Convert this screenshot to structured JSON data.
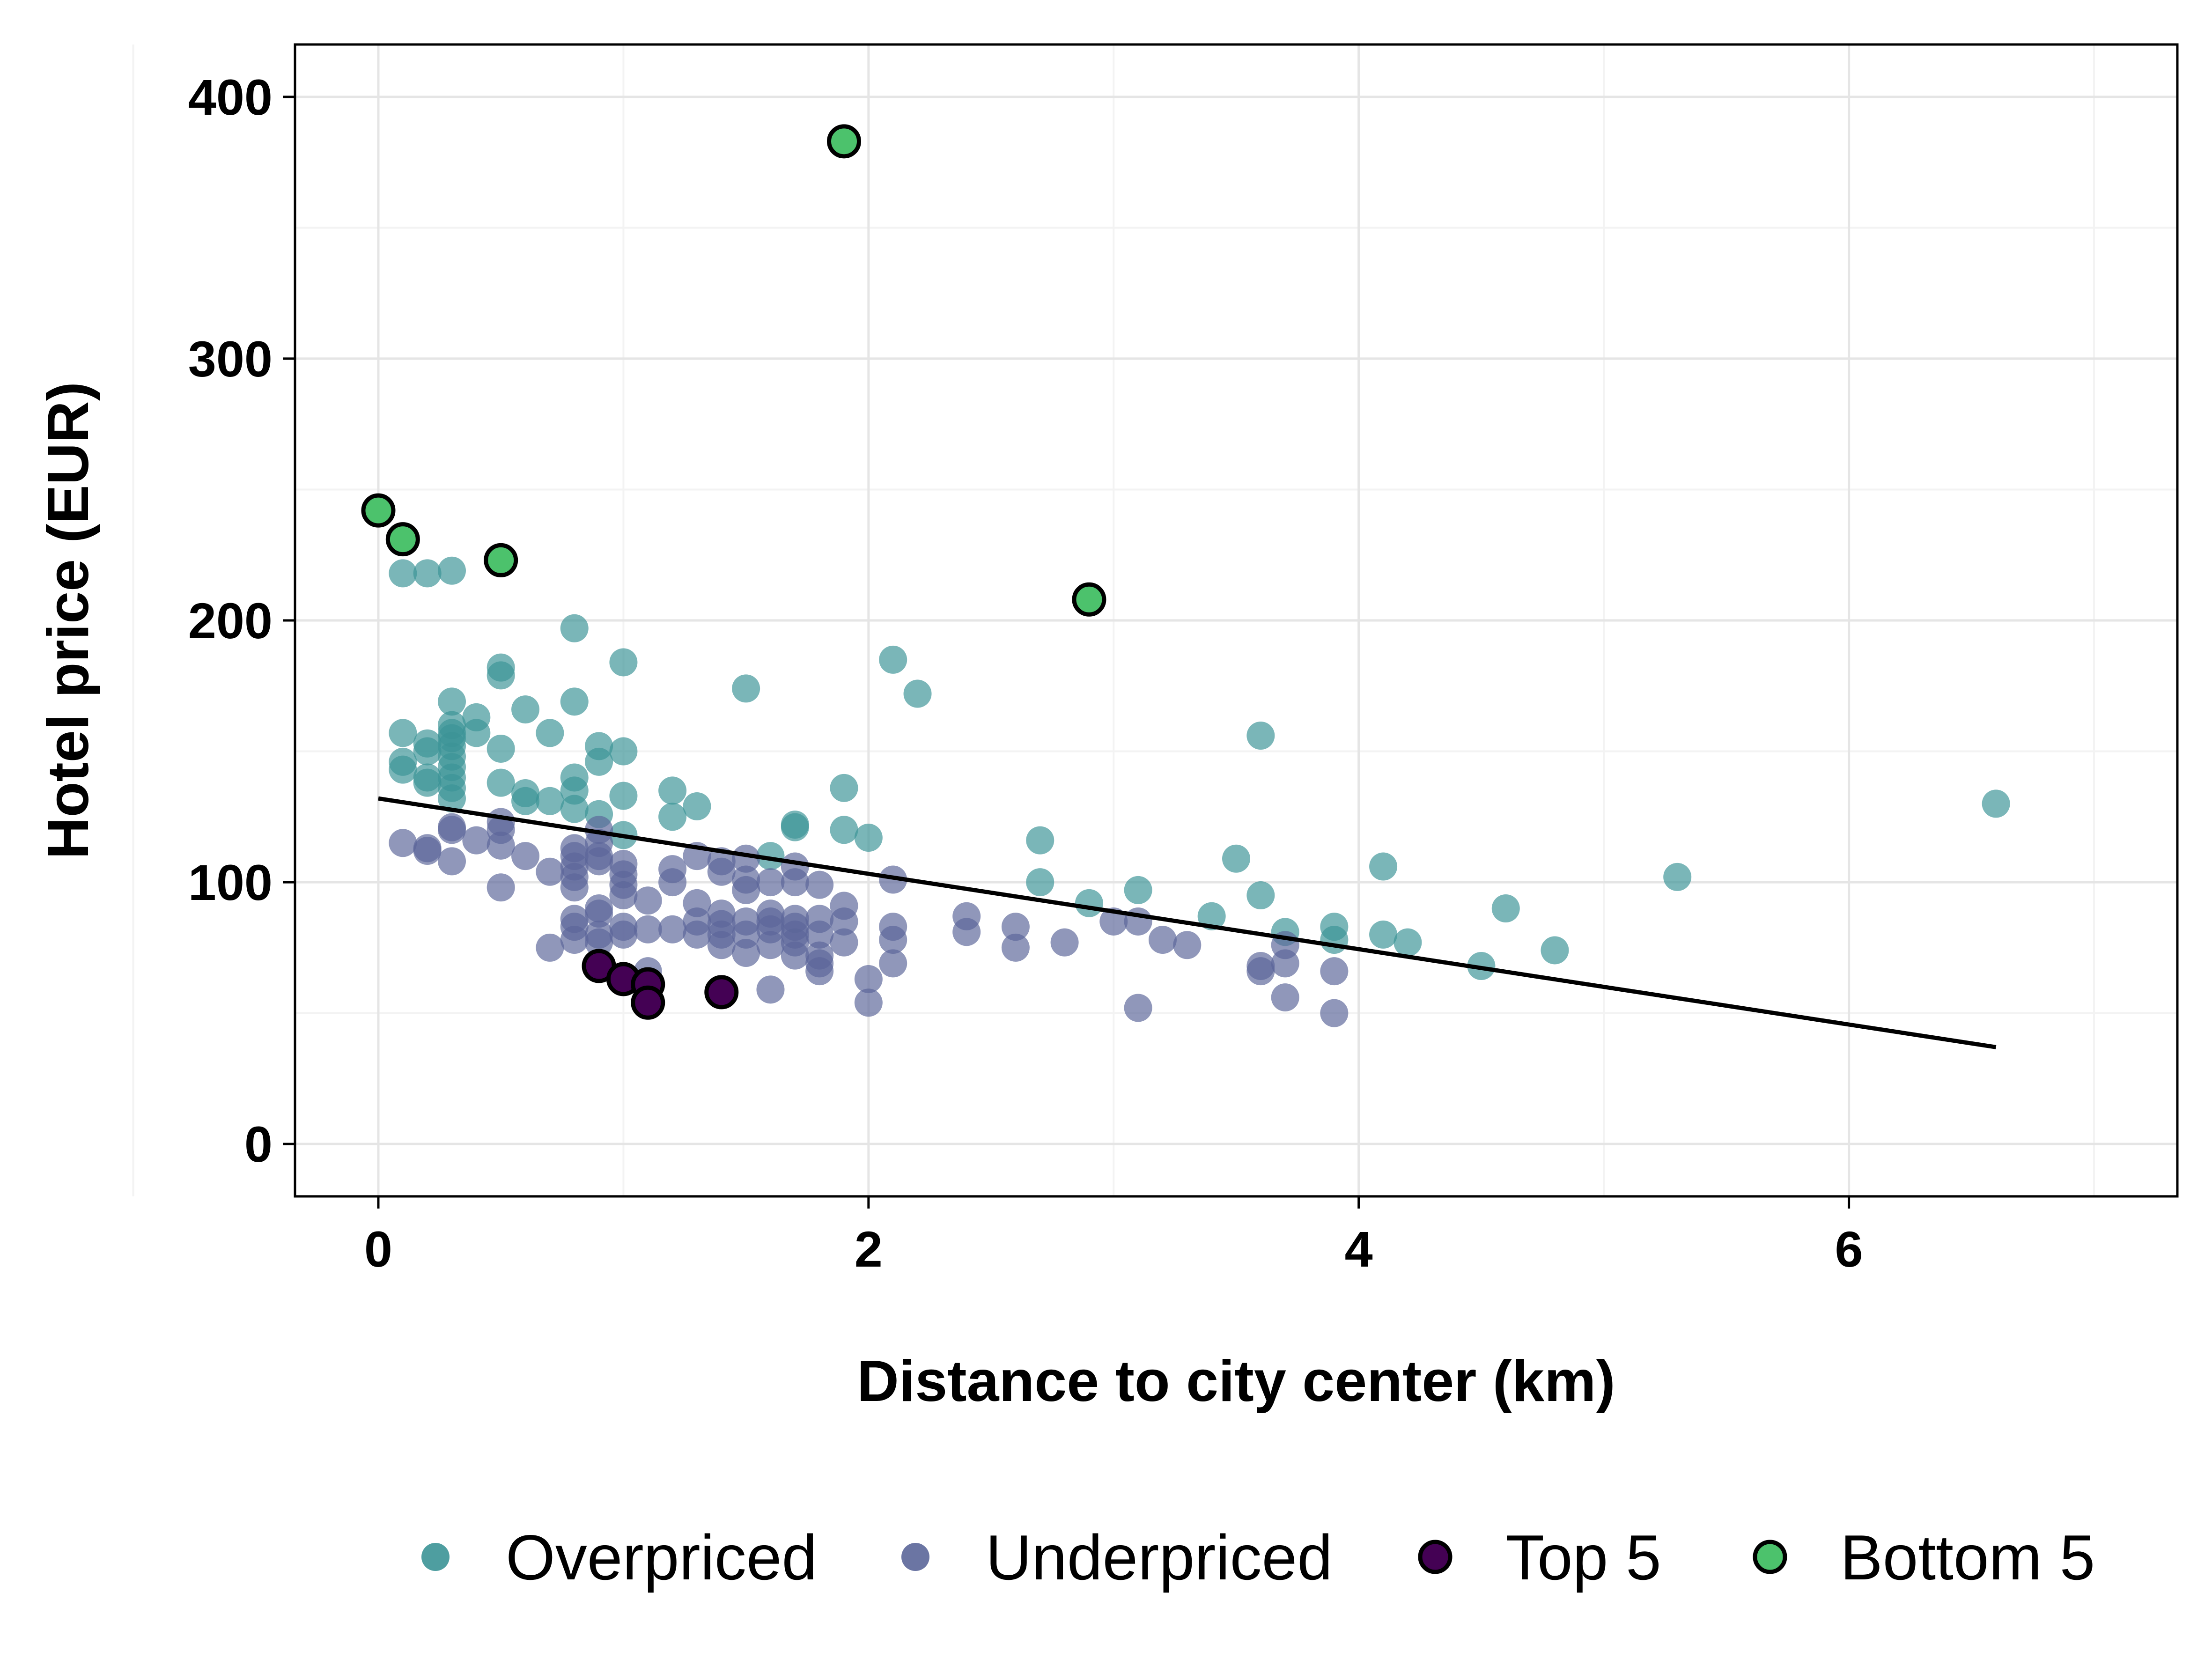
{
  "chart_data": {
    "type": "scatter",
    "title": "",
    "xlabel": "Distance to city center (km)",
    "ylabel": "Hotel price (EUR)",
    "xlim": [
      -0.34,
      7.34
    ],
    "ylim": [
      -20,
      420
    ],
    "x_ticks": [
      0,
      2,
      4,
      6
    ],
    "x_tick_labels": [
      "0",
      "2",
      "4",
      "6"
    ],
    "y_ticks": [
      0,
      100,
      200,
      300,
      400
    ],
    "y_tick_labels": [
      "0",
      "100",
      "200",
      "300",
      "400"
    ],
    "grid": true,
    "legend_position": "bottom",
    "colors": {
      "Overpriced": "#3b9496",
      "Underpriced": "#5b6699",
      "Top 5": "#440154",
      "Bottom 5": "#4cc26c",
      "regression_line": "#000000"
    },
    "regression_line": {
      "x": [
        0,
        6.6
      ],
      "y": [
        132,
        37
      ]
    },
    "series": [
      {
        "name": "Overpriced",
        "points": [
          [
            0.1,
            157
          ],
          [
            0.1,
            146
          ],
          [
            0.1,
            143
          ],
          [
            0.1,
            218
          ],
          [
            0.2,
            218
          ],
          [
            0.3,
            219
          ],
          [
            0.2,
            153
          ],
          [
            0.2,
            150
          ],
          [
            0.2,
            140
          ],
          [
            0.2,
            138
          ],
          [
            0.3,
            169
          ],
          [
            0.3,
            160
          ],
          [
            0.3,
            157
          ],
          [
            0.3,
            155
          ],
          [
            0.3,
            152
          ],
          [
            0.3,
            148
          ],
          [
            0.3,
            144
          ],
          [
            0.3,
            140
          ],
          [
            0.3,
            136
          ],
          [
            0.3,
            132
          ],
          [
            0.4,
            163
          ],
          [
            0.4,
            157
          ],
          [
            0.5,
            182
          ],
          [
            0.5,
            179
          ],
          [
            0.5,
            151
          ],
          [
            0.5,
            138
          ],
          [
            0.6,
            166
          ],
          [
            0.6,
            134
          ],
          [
            0.6,
            131
          ],
          [
            0.7,
            157
          ],
          [
            0.7,
            131
          ],
          [
            0.8,
            197
          ],
          [
            0.8,
            169
          ],
          [
            0.8,
            140
          ],
          [
            0.8,
            135
          ],
          [
            0.8,
            128
          ],
          [
            0.9,
            152
          ],
          [
            0.9,
            146
          ],
          [
            0.9,
            126
          ],
          [
            1.0,
            184
          ],
          [
            1.0,
            150
          ],
          [
            1.0,
            133
          ],
          [
            1.0,
            118
          ],
          [
            1.2,
            135
          ],
          [
            1.2,
            125
          ],
          [
            1.3,
            129
          ],
          [
            1.5,
            174
          ],
          [
            1.6,
            110
          ],
          [
            1.7,
            122
          ],
          [
            1.7,
            121
          ],
          [
            1.9,
            136
          ],
          [
            1.9,
            120
          ],
          [
            2.0,
            117
          ],
          [
            2.1,
            185
          ],
          [
            2.2,
            172
          ],
          [
            2.7,
            116
          ],
          [
            2.7,
            100
          ],
          [
            2.9,
            92
          ],
          [
            3.1,
            97
          ],
          [
            3.4,
            87
          ],
          [
            3.5,
            109
          ],
          [
            3.6,
            156
          ],
          [
            3.6,
            95
          ],
          [
            3.7,
            81
          ],
          [
            3.9,
            83
          ],
          [
            3.9,
            78
          ],
          [
            4.1,
            106
          ],
          [
            4.1,
            80
          ],
          [
            4.2,
            77
          ],
          [
            4.5,
            68
          ],
          [
            4.6,
            90
          ],
          [
            4.8,
            74
          ],
          [
            5.3,
            102
          ],
          [
            6.6,
            130
          ]
        ]
      },
      {
        "name": "Underpriced",
        "points": [
          [
            0.1,
            115
          ],
          [
            0.2,
            113
          ],
          [
            0.2,
            112
          ],
          [
            0.3,
            121
          ],
          [
            0.3,
            120
          ],
          [
            0.3,
            108
          ],
          [
            0.4,
            116
          ],
          [
            0.5,
            123
          ],
          [
            0.5,
            120
          ],
          [
            0.5,
            114
          ],
          [
            0.5,
            98
          ],
          [
            0.6,
            110
          ],
          [
            0.7,
            104
          ],
          [
            0.7,
            75
          ],
          [
            0.8,
            113
          ],
          [
            0.8,
            110
          ],
          [
            0.8,
            106
          ],
          [
            0.8,
            102
          ],
          [
            0.8,
            98
          ],
          [
            0.8,
            86
          ],
          [
            0.8,
            83
          ],
          [
            0.8,
            78
          ],
          [
            0.9,
            120
          ],
          [
            0.9,
            115
          ],
          [
            0.9,
            110
          ],
          [
            0.9,
            108
          ],
          [
            0.9,
            90
          ],
          [
            0.9,
            88
          ],
          [
            0.9,
            80
          ],
          [
            0.9,
            77
          ],
          [
            1.0,
            107
          ],
          [
            1.0,
            103
          ],
          [
            1.0,
            99
          ],
          [
            1.0,
            95
          ],
          [
            1.0,
            83
          ],
          [
            1.0,
            80
          ],
          [
            1.1,
            93
          ],
          [
            1.1,
            82
          ],
          [
            1.1,
            66
          ],
          [
            1.2,
            105
          ],
          [
            1.2,
            100
          ],
          [
            1.2,
            82
          ],
          [
            1.3,
            110
          ],
          [
            1.3,
            92
          ],
          [
            1.3,
            85
          ],
          [
            1.3,
            80
          ],
          [
            1.4,
            108
          ],
          [
            1.4,
            104
          ],
          [
            1.4,
            88
          ],
          [
            1.4,
            84
          ],
          [
            1.4,
            80
          ],
          [
            1.4,
            76
          ],
          [
            1.5,
            109
          ],
          [
            1.5,
            101
          ],
          [
            1.5,
            97
          ],
          [
            1.5,
            85
          ],
          [
            1.5,
            80
          ],
          [
            1.5,
            73
          ],
          [
            1.6,
            100
          ],
          [
            1.6,
            88
          ],
          [
            1.6,
            85
          ],
          [
            1.6,
            82
          ],
          [
            1.6,
            76
          ],
          [
            1.6,
            59
          ],
          [
            1.7,
            106
          ],
          [
            1.7,
            100
          ],
          [
            1.7,
            86
          ],
          [
            1.7,
            83
          ],
          [
            1.7,
            80
          ],
          [
            1.7,
            77
          ],
          [
            1.7,
            72
          ],
          [
            1.8,
            99
          ],
          [
            1.8,
            86
          ],
          [
            1.8,
            80
          ],
          [
            1.8,
            72
          ],
          [
            1.8,
            69
          ],
          [
            1.8,
            66
          ],
          [
            1.9,
            91
          ],
          [
            1.9,
            85
          ],
          [
            1.9,
            77
          ],
          [
            2.0,
            63
          ],
          [
            2.0,
            54
          ],
          [
            2.1,
            101
          ],
          [
            2.1,
            83
          ],
          [
            2.1,
            78
          ],
          [
            2.1,
            69
          ],
          [
            2.4,
            87
          ],
          [
            2.4,
            81
          ],
          [
            2.6,
            83
          ],
          [
            2.6,
            75
          ],
          [
            2.8,
            77
          ],
          [
            3.0,
            85
          ],
          [
            3.1,
            85
          ],
          [
            3.1,
            52
          ],
          [
            3.2,
            78
          ],
          [
            3.3,
            76
          ],
          [
            3.6,
            68
          ],
          [
            3.6,
            66
          ],
          [
            3.7,
            76
          ],
          [
            3.7,
            69
          ],
          [
            3.7,
            56
          ],
          [
            3.9,
            66
          ],
          [
            3.9,
            50
          ]
        ]
      },
      {
        "name": "Top 5",
        "points": [
          [
            0.9,
            68
          ],
          [
            1.0,
            63
          ],
          [
            1.1,
            61
          ],
          [
            1.1,
            54
          ],
          [
            1.4,
            58
          ]
        ]
      },
      {
        "name": "Bottom 5",
        "points": [
          [
            1.9,
            383
          ],
          [
            0.0,
            242
          ],
          [
            0.1,
            231
          ],
          [
            0.5,
            223
          ],
          [
            2.9,
            208
          ]
        ]
      }
    ]
  }
}
